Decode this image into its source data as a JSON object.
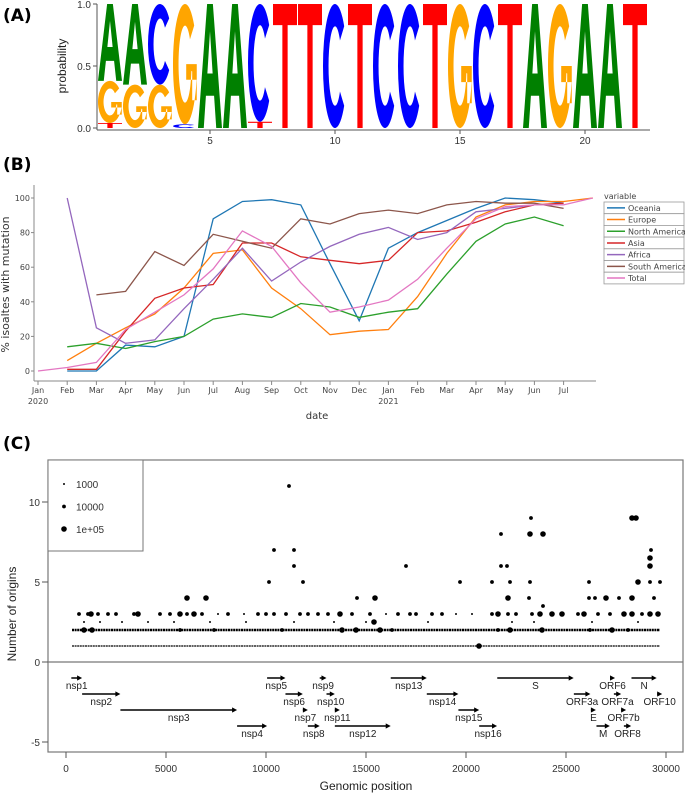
{
  "panels": {
    "a": "(A)",
    "b": "(B)",
    "c": "(C)"
  },
  "chart_data": [
    {
      "type": "sequence-logo",
      "ylabel": "probability",
      "ylim": [
        0,
        1
      ],
      "yticks": [
        "0.0",
        "0.5",
        "1.0"
      ],
      "xticks": [
        5,
        10,
        15,
        20
      ],
      "colors": {
        "A": "#008000",
        "C": "#0000ff",
        "G": "#ffa500",
        "T": "#ff0000"
      },
      "positions": [
        [
          [
            "T",
            0.04
          ],
          [
            "G",
            0.34
          ],
          [
            "A",
            0.62
          ]
        ],
        [
          [
            "G",
            0.35
          ],
          [
            "A",
            0.65
          ]
        ],
        [
          [
            "G",
            0.35
          ],
          [
            "C",
            0.65
          ]
        ],
        [
          [
            "C",
            0.03
          ],
          [
            "G",
            0.97
          ]
        ],
        [
          [
            "A",
            1
          ]
        ],
        [
          [
            "A",
            1
          ]
        ],
        [
          [
            "T",
            0.05
          ],
          [
            "C",
            0.95
          ]
        ],
        [
          [
            "T",
            1
          ]
        ],
        [
          [
            "T",
            1
          ]
        ],
        [
          [
            "C",
            1
          ]
        ],
        [
          [
            "T",
            1
          ]
        ],
        [
          [
            "C",
            1
          ]
        ],
        [
          [
            "C",
            1
          ]
        ],
        [
          [
            "T",
            1
          ]
        ],
        [
          [
            "G",
            1
          ]
        ],
        [
          [
            "C",
            1
          ]
        ],
        [
          [
            "T",
            1
          ]
        ],
        [
          [
            "A",
            1
          ]
        ],
        [
          [
            "G",
            1
          ]
        ],
        [
          [
            "A",
            1
          ]
        ],
        [
          [
            "A",
            1
          ]
        ],
        [
          [
            "T",
            1
          ]
        ]
      ]
    },
    {
      "type": "line",
      "xlabel": "date",
      "ylabel": "% isoaltes with mutation",
      "ylim": [
        0,
        100
      ],
      "yticks": [
        0,
        20,
        40,
        60,
        80,
        100
      ],
      "x": [
        "Jan 2020",
        "Feb",
        "Mar",
        "Apr",
        "May",
        "Jun",
        "Jul",
        "Aug",
        "Sep",
        "Oct",
        "Nov",
        "Dec",
        "Jan 2021",
        "Feb",
        "Mar",
        "Apr",
        "May",
        "Jun",
        "Jul",
        "Aug"
      ],
      "xticks": [
        [
          "Jan",
          "2020"
        ],
        [
          "Feb",
          ""
        ],
        [
          "Mar",
          ""
        ],
        [
          "Apr",
          ""
        ],
        [
          "May",
          ""
        ],
        [
          "Jun",
          ""
        ],
        [
          "Jul",
          ""
        ],
        [
          "Aug",
          ""
        ],
        [
          "Sep",
          ""
        ],
        [
          "Oct",
          ""
        ],
        [
          "Nov",
          ""
        ],
        [
          "Dec",
          ""
        ],
        [
          "Jan",
          "2021"
        ],
        [
          "Feb",
          ""
        ],
        [
          "Mar",
          ""
        ],
        [
          "Apr",
          ""
        ],
        [
          "May",
          ""
        ],
        [
          "Jun",
          ""
        ],
        [
          "Jul",
          ""
        ]
      ],
      "legend_title": "variable",
      "legend_position": "right",
      "series": [
        {
          "name": "Oceania",
          "color": "#1f77b4",
          "values": [
            null,
            0,
            0,
            15,
            14,
            20,
            88,
            98,
            99,
            96,
            62,
            29,
            71,
            80,
            87,
            94,
            100,
            99,
            97,
            null
          ]
        },
        {
          "name": "Europe",
          "color": "#ff7f0e",
          "values": [
            null,
            6,
            16,
            25,
            33,
            48,
            68,
            70,
            48,
            36,
            21,
            23,
            24,
            43,
            68,
            89,
            96,
            98,
            98,
            100
          ]
        },
        {
          "name": "North America",
          "color": "#2ca02c",
          "values": [
            null,
            14,
            16,
            13,
            17,
            20,
            30,
            33,
            31,
            39,
            37,
            31,
            34,
            36,
            56,
            75,
            85,
            89,
            84,
            null
          ]
        },
        {
          "name": "Asia",
          "color": "#d62728",
          "values": [
            null,
            1,
            1,
            23,
            42,
            48,
            50,
            74,
            74,
            66,
            64,
            62,
            64,
            80,
            81,
            86,
            92,
            96,
            97,
            null
          ]
        },
        {
          "name": "Africa",
          "color": "#9467bd",
          "values": [
            null,
            100,
            25,
            16,
            18,
            36,
            53,
            71,
            52,
            63,
            72,
            79,
            83,
            76,
            80,
            92,
            94,
            96,
            96,
            null
          ]
        },
        {
          "name": "South America",
          "color": "#8c564b",
          "values": [
            null,
            null,
            44,
            46,
            69,
            61,
            79,
            75,
            71,
            88,
            85,
            91,
            93,
            91,
            96,
            98,
            97,
            97,
            94,
            null
          ]
        },
        {
          "name": "Total",
          "color": "#e377c2",
          "values": [
            0,
            2,
            5,
            24,
            34,
            44,
            59,
            81,
            72,
            51,
            34,
            37,
            41,
            53,
            71,
            88,
            95,
            96,
            96,
            100
          ]
        }
      ]
    },
    {
      "type": "scatter",
      "xlabel": "Genomic position",
      "ylabel": "Number of origins",
      "xlim": [
        0,
        30000
      ],
      "xticks": [
        0,
        5000,
        10000,
        15000,
        20000,
        25000,
        30000
      ],
      "yticks": [
        -5,
        0,
        5,
        10
      ],
      "legend_position": "top-left",
      "size_legend": [
        "1000",
        "10000",
        "1e+05"
      ],
      "dense_rows": [
        {
          "y": 1,
          "from": 300,
          "to": 29700
        },
        {
          "y": 2,
          "from": 300,
          "to": 29700
        }
      ],
      "points": [
        [
          11150,
          11,
          2
        ],
        [
          10400,
          7,
          2
        ],
        [
          11400,
          7,
          2
        ],
        [
          11400,
          6,
          2
        ],
        [
          10150,
          5,
          2
        ],
        [
          11850,
          5,
          2
        ],
        [
          6050,
          4,
          3
        ],
        [
          7000,
          4,
          3
        ],
        [
          14550,
          4,
          2
        ],
        [
          15450,
          4,
          3
        ],
        [
          17000,
          6,
          2
        ],
        [
          19700,
          5,
          2
        ],
        [
          21300,
          5,
          2
        ],
        [
          21750,
          8,
          2
        ],
        [
          21750,
          6,
          2
        ],
        [
          22050,
          6,
          2
        ],
        [
          22200,
          5,
          2
        ],
        [
          22100,
          4,
          3
        ],
        [
          23250,
          9,
          2
        ],
        [
          23200,
          8,
          3
        ],
        [
          23850,
          8,
          3
        ],
        [
          23200,
          5,
          2
        ],
        [
          23150,
          4,
          2
        ],
        [
          23850,
          3.5,
          2
        ],
        [
          26150,
          5,
          2
        ],
        [
          26150,
          4,
          2
        ],
        [
          26450,
          4,
          2
        ],
        [
          27000,
          4,
          3
        ],
        [
          27650,
          4,
          2
        ],
        [
          28300,
          9,
          3
        ],
        [
          28500,
          9,
          3
        ],
        [
          29250,
          7,
          2
        ],
        [
          29200,
          6.5,
          3
        ],
        [
          29200,
          6,
          3
        ],
        [
          28600,
          5,
          3
        ],
        [
          29200,
          5,
          2
        ],
        [
          29700,
          5,
          2
        ],
        [
          28300,
          4,
          3
        ],
        [
          29400,
          4,
          2
        ],
        [
          15400,
          2.5,
          3
        ],
        [
          20650,
          1,
          3
        ],
        [
          650,
          3,
          2
        ],
        [
          1100,
          3,
          2
        ],
        [
          1250,
          3,
          3
        ],
        [
          1600,
          3,
          2
        ],
        [
          2100,
          3,
          2
        ],
        [
          2500,
          3,
          2
        ],
        [
          3400,
          3,
          2
        ],
        [
          3600,
          3,
          3
        ],
        [
          4700,
          3,
          2
        ],
        [
          5200,
          3,
          2
        ],
        [
          5700,
          3,
          3
        ],
        [
          6050,
          3,
          2
        ],
        [
          6400,
          3,
          3
        ],
        [
          6800,
          3,
          2
        ],
        [
          7600,
          3,
          1
        ],
        [
          8100,
          3,
          2
        ],
        [
          8900,
          3,
          1
        ],
        [
          9600,
          3,
          2
        ],
        [
          10000,
          3,
          2
        ],
        [
          10400,
          3,
          2
        ],
        [
          11000,
          3,
          2
        ],
        [
          11700,
          3,
          2
        ],
        [
          12100,
          3,
          2
        ],
        [
          12600,
          3,
          2
        ],
        [
          13100,
          3,
          2
        ],
        [
          13700,
          3,
          3
        ],
        [
          14300,
          3,
          2
        ],
        [
          15200,
          3,
          2
        ],
        [
          16000,
          3,
          1
        ],
        [
          16600,
          3,
          2
        ],
        [
          17200,
          3,
          2
        ],
        [
          17500,
          3,
          2
        ],
        [
          18300,
          3,
          2
        ],
        [
          18800,
          3,
          2
        ],
        [
          19500,
          3,
          1
        ],
        [
          20300,
          3,
          1
        ],
        [
          21300,
          3,
          2
        ],
        [
          21600,
          3,
          3
        ],
        [
          22100,
          3,
          2
        ],
        [
          22500,
          3,
          2
        ],
        [
          23300,
          3,
          2
        ],
        [
          23700,
          3,
          3
        ],
        [
          24300,
          3,
          3
        ],
        [
          24800,
          3,
          3
        ],
        [
          25600,
          3,
          2
        ],
        [
          25900,
          3,
          3
        ],
        [
          26600,
          3,
          2
        ],
        [
          27200,
          3,
          2
        ],
        [
          27900,
          3,
          3
        ],
        [
          28300,
          3,
          3
        ],
        [
          28800,
          3,
          2
        ],
        [
          29200,
          3,
          3
        ],
        [
          29600,
          3,
          3
        ],
        [
          900,
          2.5,
          1
        ],
        [
          1700,
          2.5,
          1
        ],
        [
          2800,
          2.5,
          1
        ],
        [
          4100,
          2.5,
          1
        ],
        [
          5400,
          2.5,
          1
        ],
        [
          7200,
          2.5,
          1
        ],
        [
          9000,
          2.5,
          1
        ],
        [
          11400,
          2.5,
          1
        ],
        [
          13400,
          2.5,
          1
        ],
        [
          15000,
          2.5,
          1
        ],
        [
          18100,
          2.5,
          1
        ],
        [
          22300,
          2.5,
          1
        ],
        [
          23400,
          2.5,
          1
        ],
        [
          26300,
          2.5,
          1
        ],
        [
          28600,
          2.5,
          1
        ],
        [
          900,
          2,
          3
        ],
        [
          1300,
          2,
          3
        ],
        [
          5700,
          2,
          2
        ],
        [
          7400,
          2,
          2
        ],
        [
          10800,
          2,
          2
        ],
        [
          13800,
          2,
          3
        ],
        [
          14500,
          2,
          3
        ],
        [
          15700,
          2,
          3
        ],
        [
          16300,
          2,
          2
        ],
        [
          21600,
          2,
          2
        ],
        [
          22200,
          2,
          3
        ],
        [
          23800,
          2,
          3
        ],
        [
          26200,
          2,
          2
        ],
        [
          27300,
          2,
          3
        ],
        [
          28100,
          2,
          2
        ]
      ],
      "genes": [
        {
          "name": "nsp1",
          "start": 266,
          "end": 805,
          "level": 1
        },
        {
          "name": "nsp2",
          "start": 806,
          "end": 2719,
          "level": 2
        },
        {
          "name": "nsp3",
          "start": 2720,
          "end": 8554,
          "level": 3
        },
        {
          "name": "nsp4",
          "start": 8555,
          "end": 10054,
          "level": 4
        },
        {
          "name": "nsp5",
          "start": 10055,
          "end": 10972,
          "level": 1
        },
        {
          "name": "nsp6",
          "start": 10973,
          "end": 11842,
          "level": 2
        },
        {
          "name": "nsp7",
          "start": 11843,
          "end": 12091,
          "level": 3
        },
        {
          "name": "nsp8",
          "start": 12092,
          "end": 12685,
          "level": 4
        },
        {
          "name": "nsp9",
          "start": 12686,
          "end": 13024,
          "level": 1
        },
        {
          "name": "nsp10",
          "start": 13025,
          "end": 13441,
          "level": 2
        },
        {
          "name": "nsp11",
          "start": 13442,
          "end": 13480,
          "level": 3
        },
        {
          "name": "nsp12",
          "start": 13442,
          "end": 16236,
          "level": 4
        },
        {
          "name": "nsp13",
          "start": 16237,
          "end": 18039,
          "level": 1
        },
        {
          "name": "nsp14",
          "start": 18040,
          "end": 19620,
          "level": 2
        },
        {
          "name": "nsp15",
          "start": 19621,
          "end": 20658,
          "level": 3
        },
        {
          "name": "nsp16",
          "start": 20659,
          "end": 21552,
          "level": 4
        },
        {
          "name": "S",
          "start": 21563,
          "end": 25384,
          "level": 1
        },
        {
          "name": "ORF3a",
          "start": 25393,
          "end": 26220,
          "level": 2
        },
        {
          "name": "E",
          "start": 26245,
          "end": 26472,
          "level": 3
        },
        {
          "name": "M",
          "start": 26523,
          "end": 27191,
          "level": 4
        },
        {
          "name": "ORF6",
          "start": 27202,
          "end": 27387,
          "level": 1
        },
        {
          "name": "ORF7a",
          "start": 27394,
          "end": 27759,
          "level": 2
        },
        {
          "name": "ORF7b",
          "start": 27756,
          "end": 27887,
          "level": 3
        },
        {
          "name": "ORF8",
          "start": 27894,
          "end": 28259,
          "level": 4
        },
        {
          "name": "N",
          "start": 28274,
          "end": 29533,
          "level": 1
        },
        {
          "name": "ORF10",
          "start": 29558,
          "end": 29674,
          "level": 2
        }
      ]
    }
  ]
}
